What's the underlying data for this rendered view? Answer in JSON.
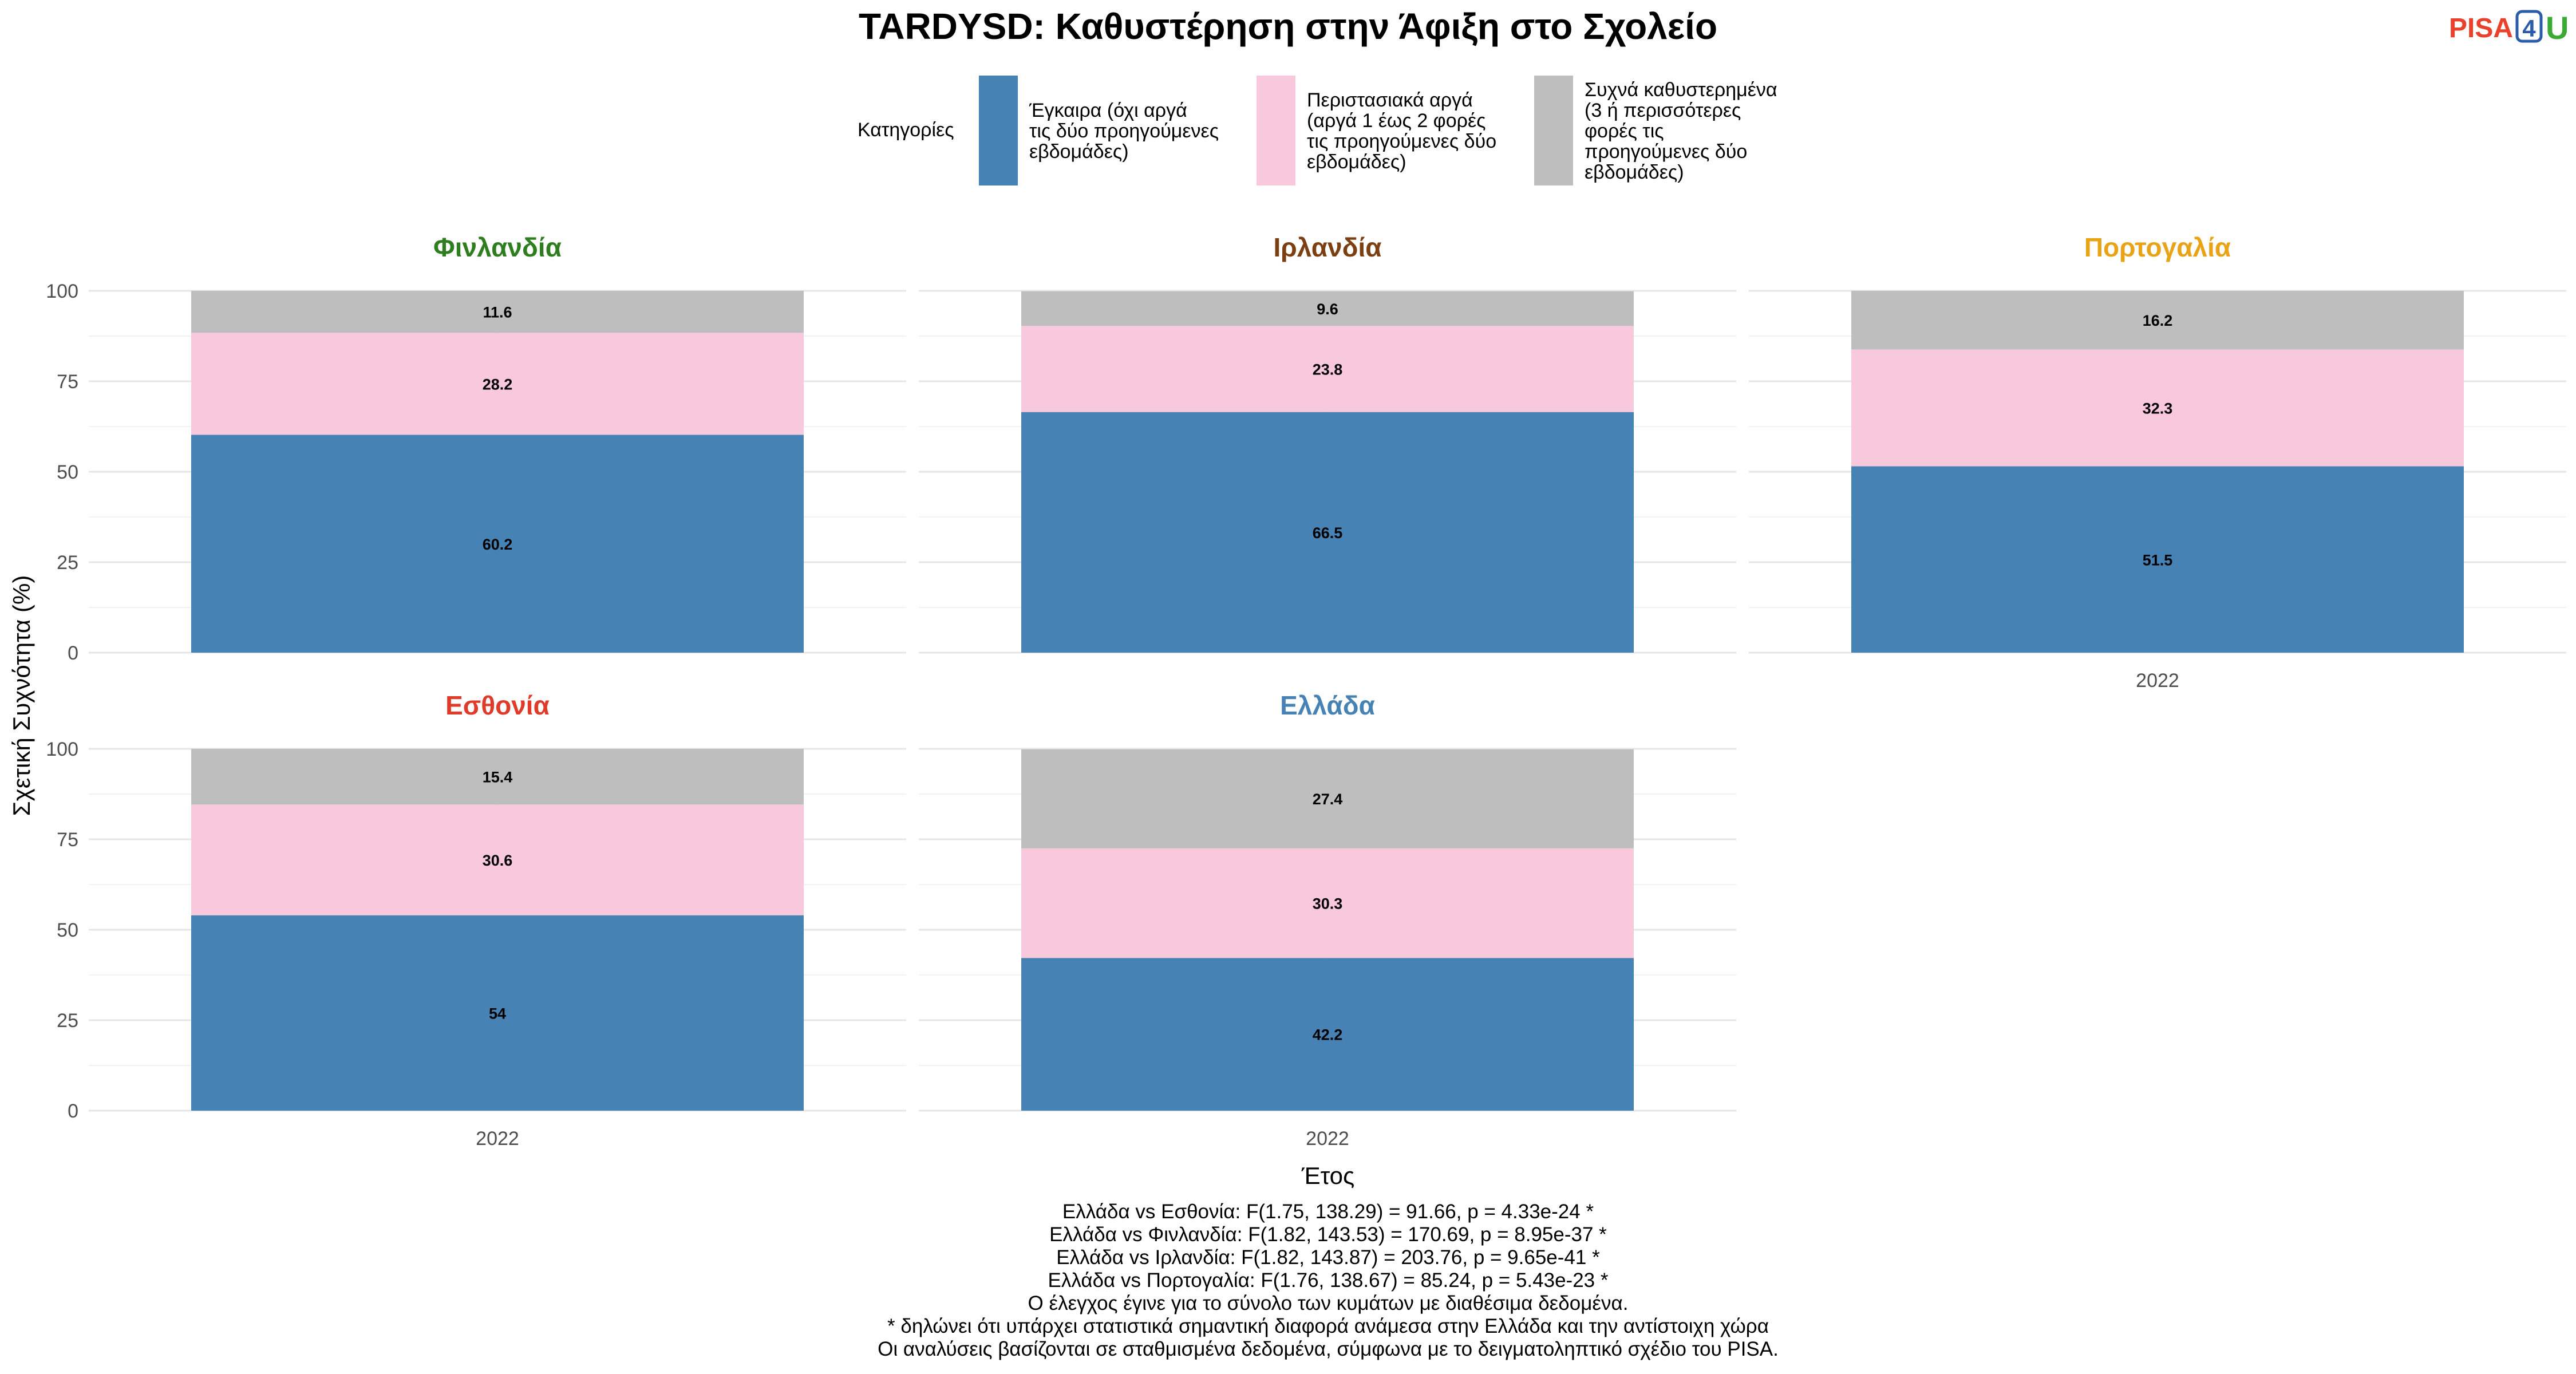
{
  "chart_title": "TARDYSD: Καθυστέρηση στην Άφιξη στο Σχολείο",
  "logo": {
    "part1": "PISA",
    "part2": "4",
    "part3": "U",
    "color1": "#e8412c",
    "color2": "#2a5caa",
    "color3": "#3aaa35"
  },
  "legend": {
    "title": "Κατηγορίες",
    "items": [
      {
        "lines": [
          "Έγκαιρα (όχι αργά",
          "τις δύο προηγούμενες",
          "εβδομάδες)"
        ],
        "color": "#4682b4"
      },
      {
        "lines": [
          "Περιστασιακά αργά",
          "(αργά 1 έως 2 φορές",
          "τις προηγούμενες δύο",
          "εβδομάδες)"
        ],
        "color": "#f8c8dc"
      },
      {
        "lines": [
          "Συχνά καθυστερημένα",
          "(3 ή περισσότερες",
          "φορές τις",
          "προηγούμενες δύο",
          "εβδομάδες)"
        ],
        "color": "#bebebe"
      }
    ]
  },
  "chart_data": {
    "type": "bar",
    "stacked": true,
    "xlabel": "Έτος",
    "ylabel": "Σχετική Συχνότητα (%)",
    "ylim": [
      0,
      100
    ],
    "yticks": [
      0,
      25,
      50,
      75,
      100
    ],
    "series_names": [
      "Έγκαιρα (όχι αργά τις δύο προηγούμενες εβδομάδες)",
      "Περιστασιακά αργά (αργά 1 έως 2 φορές τις προηγούμενες δύο εβδομάδες)",
      "Συχνά καθυστερημένα (3 ή περισσότερες φορές τις προηγούμενες δύο εβδομάδες)"
    ],
    "series_colors": [
      "#4682b4",
      "#f8c8dc",
      "#bebebe"
    ],
    "grid": true,
    "legend_position": "top",
    "panels": [
      {
        "country": "Φινλανδία",
        "color": "#2e7d1f",
        "category": "2022",
        "values": [
          60.2,
          28.2,
          11.6
        ],
        "labels": [
          "60.2",
          "28.2",
          "11.6"
        ],
        "show_x_tick": false
      },
      {
        "country": "Ιρλανδία",
        "color": "#7b3f12",
        "category": "2022",
        "values": [
          66.5,
          23.8,
          9.6
        ],
        "labels": [
          "66.5",
          "23.8",
          "9.6"
        ],
        "show_x_tick": false
      },
      {
        "country": "Πορτογαλία",
        "color": "#e8a317",
        "category": "2022",
        "values": [
          51.5,
          32.3,
          16.2
        ],
        "labels": [
          "51.5",
          "32.3",
          "16.2"
        ],
        "show_x_tick": true
      },
      {
        "country": "Εσθονία",
        "color": "#e03a2a",
        "category": "2022",
        "values": [
          54,
          30.6,
          15.4
        ],
        "labels": [
          "54",
          "30.6",
          "15.4"
        ],
        "show_x_tick": true
      },
      {
        "country": "Ελλάδα",
        "color": "#4682b4",
        "category": "2022",
        "values": [
          42.2,
          30.3,
          27.4
        ],
        "labels": [
          "42.2",
          "30.3",
          "27.4"
        ],
        "show_x_tick": true
      }
    ]
  },
  "notes": [
    "Ελλάδα vs Εσθονία: F(1.75, 138.29) = 91.66, p = 4.33e-24 *",
    "Ελλάδα vs Φινλανδία: F(1.82, 143.53) = 170.69, p = 8.95e-37 *",
    "Ελλάδα vs Ιρλανδία: F(1.82, 143.87) = 203.76, p = 9.65e-41 *",
    "Ελλάδα vs Πορτογαλία: F(1.76, 138.67) = 85.24, p = 5.43e-23 *",
    "Ο έλεγχος έγινε για το σύνολο των κυμάτων με διαθέσιμα δεδομένα.",
    "* δηλώνει ότι υπάρχει στατιστικά σημαντική διαφορά ανάμεσα στην Ελλάδα και την αντίστοιχη χώρα",
    "Οι αναλύσεις βασίζονται σε σταθμισμένα δεδομένα, σύμφωνα με το δειγματοληπτικό σχέδιο του PISA."
  ]
}
